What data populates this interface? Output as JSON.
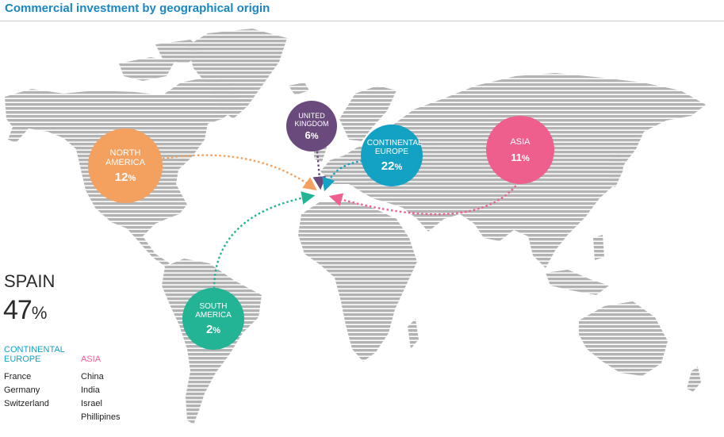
{
  "title": "Commercial investment by geographical origin",
  "colors": {
    "land": "#b3b3b3",
    "north_america": "#f4a05e",
    "united_kingdom": "#6a4a7d",
    "continental_europe": "#13a1c4",
    "asia": "#ef5f8e",
    "south_america": "#23b395"
  },
  "regions": {
    "north_america": {
      "name": "NORTH AMERICA",
      "value": "12",
      "unit": "%"
    },
    "united_kingdom": {
      "name": "UNITED KINGDOM",
      "value": "6",
      "unit": "%"
    },
    "continental_europe": {
      "name": "CONTINENTAL EUROPE",
      "value": "22",
      "unit": "%"
    },
    "asia": {
      "name": "ASIA",
      "value": "11",
      "unit": "%"
    },
    "south_america": {
      "name": "SOUTH AMERICA",
      "value": "2",
      "unit": "%"
    }
  },
  "spain": {
    "label": "SPAIN",
    "value": "47",
    "unit": "%"
  },
  "lists": {
    "continental_europe": {
      "title": "CONTINENTAL EUROPE",
      "items": [
        "France",
        "Germany",
        "Switzerland"
      ]
    },
    "asia": {
      "title": "ASIA",
      "items": [
        "China",
        "India",
        "Israel",
        "Phillipines"
      ]
    }
  }
}
